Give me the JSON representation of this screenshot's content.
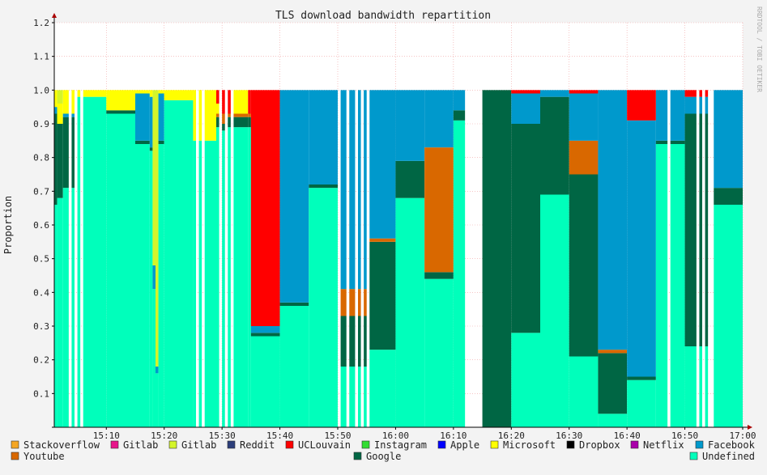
{
  "chart_data": {
    "type": "area",
    "stacked": true,
    "title": "TLS download bandwidth repartition",
    "ylabel": "Proportion",
    "xlabel": "",
    "credit": "RRDTOOL / TOBI OETIKER",
    "ylim": [
      0,
      1.2
    ],
    "yticks": [
      "0.1",
      "0.2",
      "0.3",
      "0.4",
      "0.5",
      "0.6",
      "0.7",
      "0.8",
      "0.9",
      "1.0",
      "1.1",
      "1.2"
    ],
    "xlim": [
      "15:01",
      "17:00"
    ],
    "xticks": [
      "15:10",
      "15:20",
      "15:30",
      "15:40",
      "15:50",
      "16:00",
      "16:10",
      "16:20",
      "16:30",
      "16:40",
      "16:50",
      "17:00"
    ],
    "grid": true,
    "legend_position": "bottom",
    "colors": {
      "Stackoverflow": "#f5a623",
      "Gitlab1": "#e8168b",
      "Gitlab2": "#d4f52a",
      "Reddit": "#2c3e7a",
      "UCLouvain": "#ff0000",
      "Instagram": "#33dd33",
      "Apple": "#0000ff",
      "Microsoft": "#ffff00",
      "Dropbox": "#000000",
      "Netflix": "#aa00aa",
      "Facebook": "#0099cc",
      "Youtube": "#d96800",
      "Google": "#006644",
      "Undefined": "#00ffbb"
    },
    "legend": [
      {
        "label": "Stackoverflow",
        "key": "Stackoverflow"
      },
      {
        "label": "Gitlab",
        "key": "Gitlab1"
      },
      {
        "label": "Gitlab",
        "key": "Gitlab2"
      },
      {
        "label": "Reddit",
        "key": "Reddit"
      },
      {
        "label": "UCLouvain",
        "key": "UCLouvain"
      },
      {
        "label": "Instagram",
        "key": "Instagram"
      },
      {
        "label": "Apple",
        "key": "Apple"
      },
      {
        "label": "Microsoft",
        "key": "Microsoft"
      },
      {
        "label": "Dropbox",
        "key": "Dropbox"
      },
      {
        "label": "Netflix",
        "key": "Netflix"
      },
      {
        "label": "Facebook",
        "key": "Facebook"
      },
      {
        "label": "Youtube",
        "key": "Youtube"
      },
      {
        "label": "Google",
        "key": "Google"
      },
      {
        "label": "Undefined",
        "key": "Undefined"
      }
    ],
    "stack_order": [
      "Undefined",
      "Google",
      "Youtube",
      "Facebook",
      "Netflix",
      "Dropbox",
      "Microsoft",
      "Apple",
      "Instagram",
      "UCLouvain",
      "Reddit",
      "Gitlab2",
      "Gitlab1",
      "Stackoverflow"
    ],
    "segments": [
      {
        "start": "15:01:00",
        "end": "15:01:30",
        "values": {
          "Undefined": 0.66,
          "Google": 0.27,
          "Facebook": 0.02,
          "Microsoft": 0.05
        }
      },
      {
        "start": "15:01:30",
        "end": "15:02:30",
        "values": {
          "Undefined": 0.68,
          "Google": 0.22,
          "Gitlab2": 0.04,
          "Microsoft": 0.06
        }
      },
      {
        "start": "15:02:30",
        "end": "15:03:30",
        "values": {
          "Undefined": 0.71,
          "Google": 0.21,
          "Facebook": 0.01,
          "Microsoft": 0.07
        }
      },
      {
        "start": "15:04:00",
        "end": "15:04:30",
        "values": {
          "Undefined": 0.71,
          "Google": 0.21,
          "Facebook": 0.01,
          "Microsoft": 0.07
        }
      },
      {
        "start": "15:05:00",
        "end": "15:05:30",
        "values": {
          "Undefined": 0.98,
          "Microsoft": 0.02
        }
      },
      {
        "start": "15:06:00",
        "end": "15:10:00",
        "values": {
          "Undefined": 0.98,
          "Microsoft": 0.02
        }
      },
      {
        "start": "15:10:00",
        "end": "15:15:00",
        "values": {
          "Undefined": 0.93,
          "Google": 0.01,
          "Microsoft": 0.06
        }
      },
      {
        "start": "15:15:00",
        "end": "15:17:30",
        "values": {
          "Undefined": 0.84,
          "Google": 0.01,
          "Facebook": 0.14,
          "Microsoft": 0.01
        }
      },
      {
        "start": "15:17:30",
        "end": "15:18:00",
        "values": {
          "Undefined": 0.82,
          "Google": 0.01,
          "Facebook": 0.15,
          "Microsoft": 0.02
        }
      },
      {
        "start": "15:18:00",
        "end": "15:18:30",
        "values": {
          "Undefined": 0.41,
          "Facebook": 0.07,
          "Gitlab2": 0.52
        }
      },
      {
        "start": "15:18:30",
        "end": "15:19:00",
        "values": {
          "Undefined": 0.16,
          "Facebook": 0.02,
          "Gitlab2": 0.82
        }
      },
      {
        "start": "15:19:00",
        "end": "15:20:00",
        "values": {
          "Undefined": 0.84,
          "Google": 0.01,
          "Facebook": 0.14,
          "Microsoft": 0.01
        }
      },
      {
        "start": "15:20:00",
        "end": "15:25:00",
        "values": {
          "Undefined": 0.97,
          "Microsoft": 0.03
        }
      },
      {
        "start": "15:25:00",
        "end": "15:25:30",
        "values": {
          "Undefined": 0.85,
          "Microsoft": 0.15
        }
      },
      {
        "start": "15:26:00",
        "end": "15:26:30",
        "values": {
          "Undefined": 0.85,
          "Microsoft": 0.15
        }
      },
      {
        "start": "15:27:00",
        "end": "15:29:00",
        "values": {
          "Undefined": 0.85,
          "Microsoft": 0.15
        }
      },
      {
        "start": "15:29:00",
        "end": "15:29:30",
        "values": {
          "Undefined": 0.89,
          "Google": 0.03,
          "Youtube": 0.01,
          "UCLouvain": 0.04,
          "Microsoft": 0.03
        }
      },
      {
        "start": "15:30:00",
        "end": "15:30:30",
        "values": {
          "Undefined": 0.88,
          "Google": 0.02,
          "Youtube": 0.03,
          "UCLouvain": 0.07
        }
      },
      {
        "start": "15:31:00",
        "end": "15:31:30",
        "values": {
          "Undefined": 0.89,
          "Google": 0.03,
          "Youtube": 0.01,
          "UCLouvain": 0.07
        }
      },
      {
        "start": "15:32:00",
        "end": "15:34:30",
        "values": {
          "Undefined": 0.89,
          "Google": 0.03,
          "Youtube": 0.01,
          "Microsoft": 0.07
        }
      },
      {
        "start": "15:34:30",
        "end": "15:35:00",
        "values": {
          "Undefined": 0.89,
          "Google": 0.03,
          "Youtube": 0.01,
          "UCLouvain": 0.07
        }
      },
      {
        "start": "15:35:00",
        "end": "15:40:00",
        "values": {
          "Undefined": 0.27,
          "Google": 0.01,
          "Facebook": 0.02,
          "UCLouvain": 0.7
        }
      },
      {
        "start": "15:40:00",
        "end": "15:45:00",
        "values": {
          "Undefined": 0.36,
          "Google": 0.01,
          "Facebook": 0.63
        }
      },
      {
        "start": "15:45:00",
        "end": "15:50:00",
        "values": {
          "Undefined": 0.71,
          "Google": 0.01,
          "Facebook": 0.28
        }
      },
      {
        "start": "15:50:30",
        "end": "15:51:30",
        "values": {
          "Undefined": 0.18,
          "Google": 0.15,
          "Youtube": 0.08,
          "Facebook": 0.59
        }
      },
      {
        "start": "15:52:00",
        "end": "15:53:00",
        "values": {
          "Undefined": 0.18,
          "Google": 0.15,
          "Youtube": 0.08,
          "Facebook": 0.59
        }
      },
      {
        "start": "15:53:30",
        "end": "15:54:00",
        "values": {
          "Undefined": 0.18,
          "Google": 0.15,
          "Youtube": 0.08,
          "Facebook": 0.59
        }
      },
      {
        "start": "15:54:30",
        "end": "15:55:00",
        "values": {
          "Undefined": 0.18,
          "Google": 0.15,
          "Youtube": 0.08,
          "Facebook": 0.59
        }
      },
      {
        "start": "15:55:30",
        "end": "16:00:00",
        "values": {
          "Undefined": 0.23,
          "Google": 0.32,
          "Youtube": 0.01,
          "Facebook": 0.44
        }
      },
      {
        "start": "16:00:00",
        "end": "16:05:00",
        "values": {
          "Undefined": 0.68,
          "Google": 0.11,
          "Facebook": 0.21
        }
      },
      {
        "start": "16:05:00",
        "end": "16:10:00",
        "values": {
          "Undefined": 0.44,
          "Google": 0.02,
          "Youtube": 0.37,
          "Facebook": 0.17
        }
      },
      {
        "start": "16:10:00",
        "end": "16:12:00",
        "values": {
          "Undefined": 0.91,
          "Google": 0.03,
          "Facebook": 0.06
        }
      },
      {
        "start": "16:15:00",
        "end": "16:20:00",
        "values": {
          "Google": 1.0
        }
      },
      {
        "start": "16:20:00",
        "end": "16:25:00",
        "values": {
          "Undefined": 0.28,
          "Google": 0.62,
          "Facebook": 0.09,
          "UCLouvain": 0.01
        }
      },
      {
        "start": "16:25:00",
        "end": "16:30:00",
        "values": {
          "Undefined": 0.69,
          "Google": 0.29,
          "Facebook": 0.02
        }
      },
      {
        "start": "16:30:00",
        "end": "16:35:00",
        "values": {
          "Undefined": 0.21,
          "Google": 0.54,
          "Youtube": 0.1,
          "Facebook": 0.14,
          "UCLouvain": 0.01
        }
      },
      {
        "start": "16:35:00",
        "end": "16:40:00",
        "values": {
          "Undefined": 0.04,
          "Google": 0.18,
          "Youtube": 0.01,
          "Facebook": 0.77
        }
      },
      {
        "start": "16:40:00",
        "end": "16:45:00",
        "values": {
          "Undefined": 0.14,
          "Google": 0.01,
          "Facebook": 0.76,
          "UCLouvain": 0.09
        }
      },
      {
        "start": "16:45:00",
        "end": "16:47:00",
        "values": {
          "Undefined": 0.84,
          "Google": 0.01,
          "Facebook": 0.15
        }
      },
      {
        "start": "16:47:30",
        "end": "16:50:00",
        "values": {
          "Undefined": 0.84,
          "Google": 0.01,
          "Facebook": 0.15
        }
      },
      {
        "start": "16:50:00",
        "end": "16:52:00",
        "values": {
          "Undefined": 0.24,
          "Google": 0.69,
          "Facebook": 0.05,
          "UCLouvain": 0.02
        }
      },
      {
        "start": "16:52:30",
        "end": "16:53:00",
        "values": {
          "Undefined": 0.24,
          "Google": 0.69,
          "Facebook": 0.05,
          "UCLouvain": 0.02
        }
      },
      {
        "start": "16:53:30",
        "end": "16:54:00",
        "values": {
          "Undefined": 0.24,
          "Google": 0.69,
          "Facebook": 0.05,
          "UCLouvain": 0.02
        }
      },
      {
        "start": "16:55:00",
        "end": "17:00:00",
        "values": {
          "Undefined": 0.66,
          "Google": 0.05,
          "Facebook": 0.29
        }
      }
    ]
  }
}
